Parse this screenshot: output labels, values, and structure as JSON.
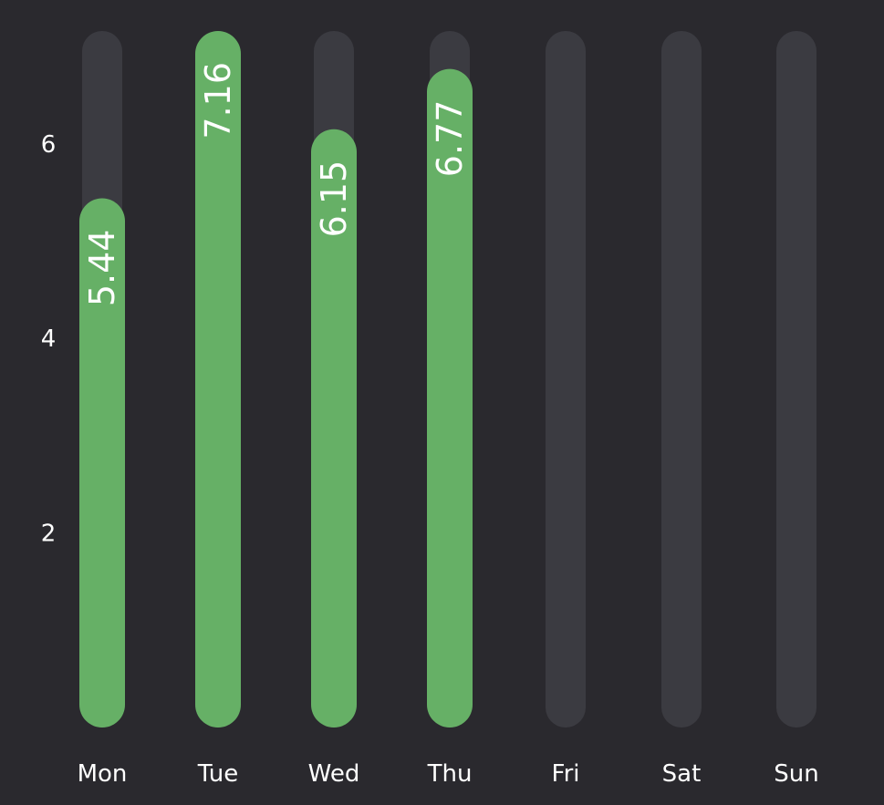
{
  "chart_data": {
    "type": "bar",
    "categories": [
      "Mon",
      "Tue",
      "Wed",
      "Thu",
      "Fri",
      "Sat",
      "Sun"
    ],
    "values": [
      5.44,
      7.16,
      6.15,
      6.77,
      null,
      null,
      null
    ],
    "value_labels": [
      "5.44",
      "7.16",
      "6.15",
      "6.77",
      "",
      "",
      ""
    ],
    "ylim": [
      0,
      7.16
    ],
    "y_ticks": [
      2,
      4,
      6
    ],
    "y_tick_labels": [
      "2",
      "4",
      "6"
    ],
    "grid": false,
    "legend": "none",
    "orientation": "vertical",
    "bar_style": "rounded-pill",
    "colors": {
      "background": "#2a292e",
      "track": "#3b3b41",
      "bar": "#66b066",
      "text": "#ffffff"
    }
  }
}
